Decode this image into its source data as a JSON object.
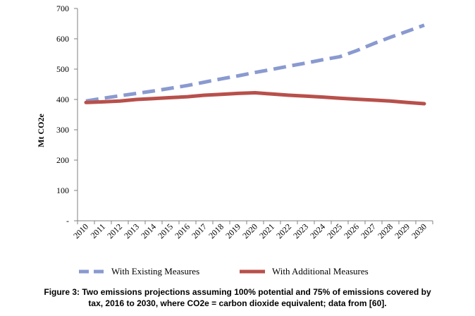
{
  "chart_data": {
    "type": "line",
    "ylabel": "Mt CO2e",
    "xlabel": "",
    "ylim": [
      0,
      700
    ],
    "y_ticks": [
      {
        "value": 0,
        "label": "-"
      },
      {
        "value": 100,
        "label": "100"
      },
      {
        "value": 200,
        "label": "200"
      },
      {
        "value": 300,
        "label": "300"
      },
      {
        "value": 400,
        "label": "400"
      },
      {
        "value": 500,
        "label": "500"
      },
      {
        "value": 600,
        "label": "600"
      },
      {
        "value": 700,
        "label": "700"
      }
    ],
    "categories": [
      "2010",
      "2011",
      "2012",
      "2013",
      "2014",
      "2015",
      "2016",
      "2017",
      "2018",
      "2019",
      "2020",
      "2021",
      "2022",
      "2023",
      "2024",
      "2025",
      "2026",
      "2027",
      "2028",
      "2029",
      "2030"
    ],
    "series": [
      {
        "name": "With Existing Measures",
        "color": "#8A9AD0",
        "style": "dashed",
        "values": [
          395,
          404,
          412,
          420,
          428,
          437,
          446,
          457,
          468,
          478,
          489,
          499,
          510,
          520,
          531,
          541,
          561,
          584,
          605,
          625,
          645
        ]
      },
      {
        "name": "With Additional Measures",
        "color": "#B8504B",
        "style": "solid",
        "values": [
          390,
          392,
          395,
          400,
          403,
          406,
          409,
          414,
          417,
          420,
          422,
          418,
          414,
          411,
          408,
          404,
          401,
          398,
          395,
          390,
          386
        ]
      }
    ],
    "legend_position": "bottom",
    "grid": false
  },
  "caption": {
    "line1": "Figure 3: Two emissions projections assuming 100% potential and 75% of emissions covered by",
    "line2": "tax, 2016 to 2030, where CO2e = carbon dioxide equivalent; data from [60]."
  }
}
